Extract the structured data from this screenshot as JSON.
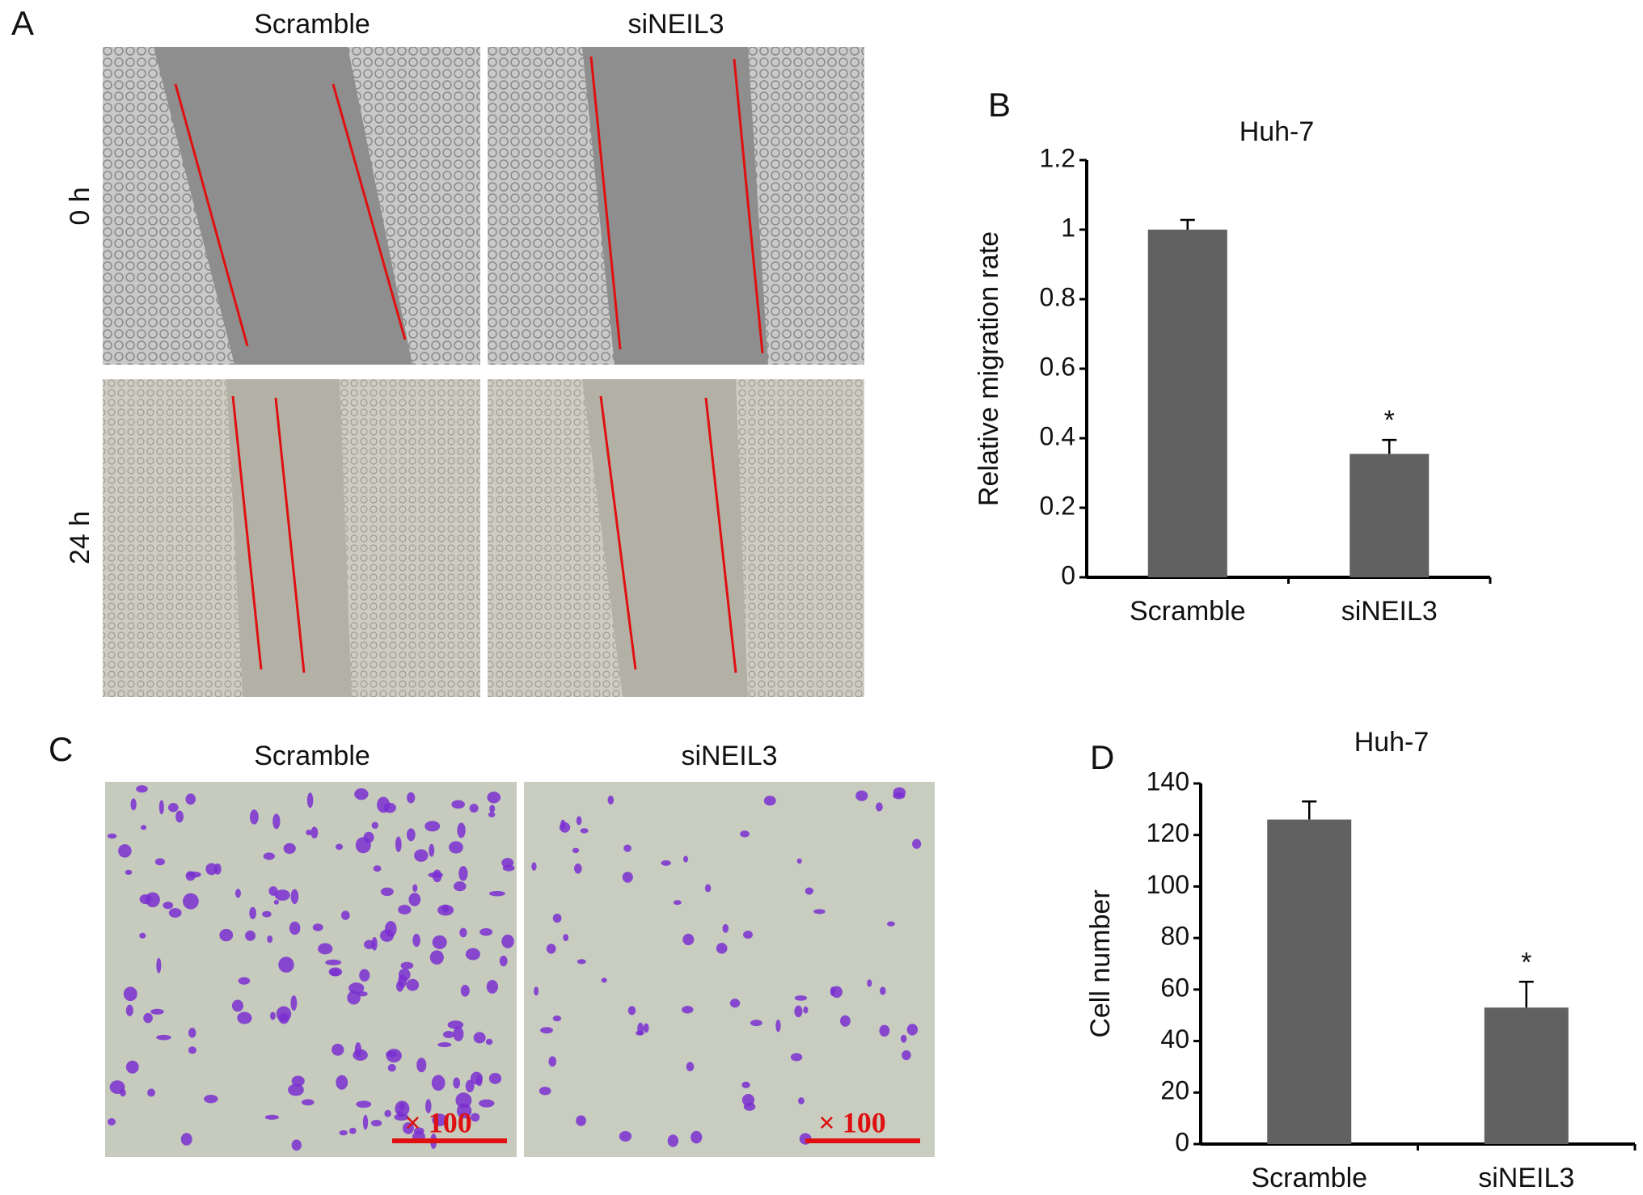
{
  "panels": {
    "A": {
      "label": "A",
      "columns": [
        "Scramble",
        "siNEIL3"
      ],
      "rows": [
        "0 h",
        "24 h"
      ]
    },
    "C": {
      "label": "C",
      "columns": [
        "Scramble",
        "siNEIL3"
      ],
      "magnification": [
        "× 100",
        "× 100"
      ]
    }
  },
  "chart_data": [
    {
      "type": "bar",
      "panel_label": "B",
      "title": "Huh-7",
      "ylabel": "Relative migration rate",
      "categories": [
        "Scramble",
        "siNEIL3"
      ],
      "values": [
        1,
        0.355
      ],
      "errors": [
        0.028,
        0.04
      ],
      "significance": [
        null,
        "*"
      ],
      "color": "#616161",
      "ylim": [
        0,
        1.2
      ],
      "yticks": [
        0,
        0.2,
        0.4,
        0.6,
        0.8,
        1,
        1.2
      ],
      "grid": false
    },
    {
      "type": "bar",
      "panel_label": "D",
      "title": "Huh-7",
      "ylabel": "Cell number",
      "categories": [
        "Scramble",
        "siNEIL3"
      ],
      "values": [
        126,
        53
      ],
      "errors": [
        7,
        10
      ],
      "significance": [
        null,
        "*"
      ],
      "color": "#616161",
      "ylim": [
        0,
        140
      ],
      "yticks": [
        0,
        20,
        40,
        60,
        80,
        100,
        120,
        140
      ],
      "grid": false
    }
  ]
}
